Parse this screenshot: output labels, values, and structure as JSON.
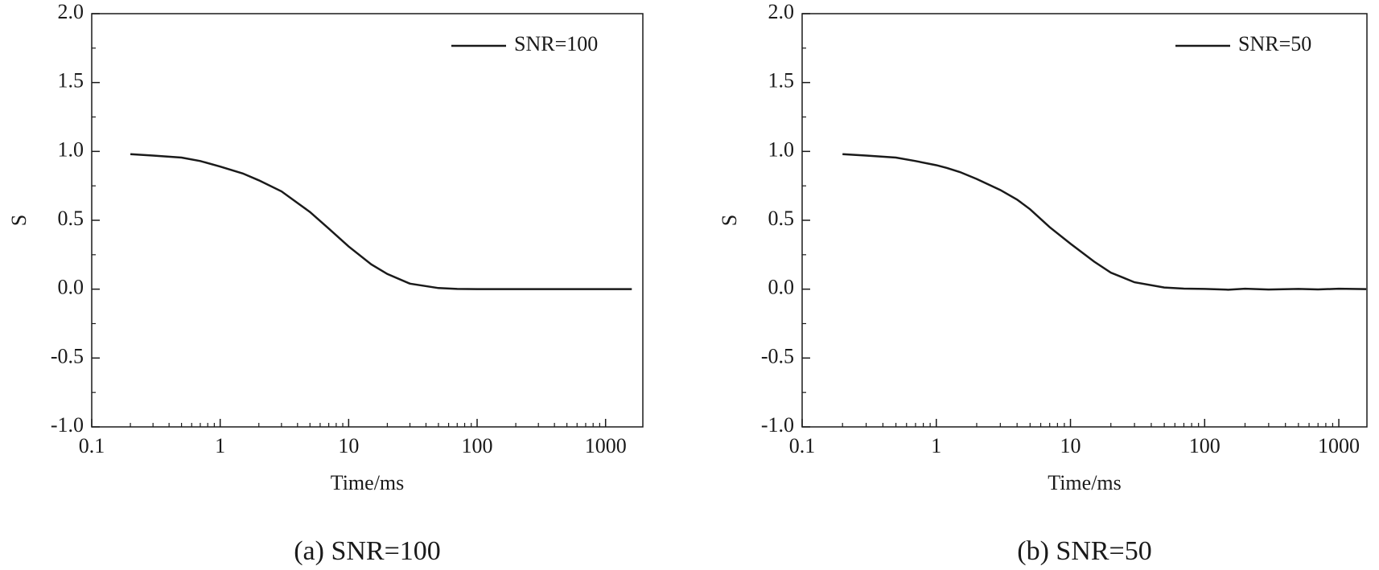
{
  "chart_data": [
    {
      "type": "line",
      "caption": "(a) SNR=100",
      "xlabel": "Time/ms",
      "ylabel": "S",
      "xscale": "log",
      "xlim": [
        0.1,
        1950
      ],
      "xticks": [
        0.1,
        1,
        10,
        100,
        1000
      ],
      "ylim": [
        -1.0,
        2.0
      ],
      "yticks": [
        {
          "value": -1.0,
          "label": "-1.0"
        },
        {
          "value": -0.5,
          "label": "-0.5"
        },
        {
          "value": 0.0,
          "label": "0.0"
        },
        {
          "value": 0.5,
          "label": "0.5"
        },
        {
          "value": 1.0,
          "label": "1.0"
        },
        {
          "value": 1.5,
          "label": "1.5"
        },
        {
          "value": 2.0,
          "label": "2.0"
        }
      ],
      "legend": "upper right",
      "x": [
        0.2,
        0.3,
        0.5,
        0.7,
        1,
        1.5,
        2,
        3,
        5,
        7,
        10,
        15,
        20,
        30,
        50,
        70,
        100,
        200,
        500,
        1000,
        1600
      ],
      "series": [
        {
          "name": "SNR=100",
          "color": "#1a1a1a",
          "values": [
            0.98,
            0.97,
            0.955,
            0.93,
            0.89,
            0.84,
            0.79,
            0.71,
            0.56,
            0.44,
            0.31,
            0.18,
            0.11,
            0.04,
            0.008,
            0.002,
            0,
            0,
            0,
            0,
            0
          ]
        }
      ]
    },
    {
      "type": "line",
      "caption": "(b) SNR=50",
      "xlabel": "Time/ms",
      "ylabel": "S",
      "xscale": "log",
      "xlim": [
        0.1,
        1620
      ],
      "xticks": [
        0.1,
        1,
        10,
        100,
        1000
      ],
      "ylim": [
        -1.0,
        2.0
      ],
      "yticks": [
        {
          "value": -1.0,
          "label": "-1.0"
        },
        {
          "value": -0.5,
          "label": "-0.5"
        },
        {
          "value": 0.0,
          "label": "0.0"
        },
        {
          "value": 0.5,
          "label": "0.5"
        },
        {
          "value": 1.0,
          "label": "1.0"
        },
        {
          "value": 1.5,
          "label": "1.5"
        },
        {
          "value": 2.0,
          "label": "2.0"
        }
      ],
      "legend": "upper right",
      "x": [
        0.2,
        0.3,
        0.5,
        0.7,
        1,
        1.2,
        1.5,
        2,
        3,
        4,
        5,
        7,
        10,
        15,
        20,
        30,
        50,
        70,
        100,
        150,
        200,
        300,
        500,
        700,
        1000,
        1600
      ],
      "series": [
        {
          "name": "SNR=50",
          "color": "#1a1a1a",
          "values": [
            0.98,
            0.97,
            0.955,
            0.93,
            0.9,
            0.88,
            0.85,
            0.8,
            0.72,
            0.65,
            0.58,
            0.45,
            0.33,
            0.2,
            0.12,
            0.05,
            0.012,
            0.004,
            0.002,
            -0.004,
            0.003,
            -0.003,
            0.002,
            -0.002,
            0.003,
            0.0
          ]
        }
      ]
    }
  ]
}
